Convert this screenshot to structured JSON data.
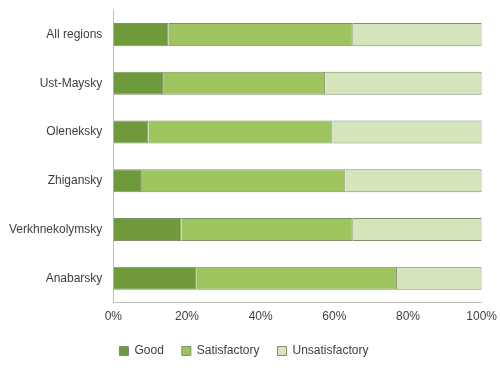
{
  "chart_data": {
    "type": "bar",
    "orientation": "horizontal",
    "stacked": true,
    "categories": [
      "All regions",
      "Ust-Maysky",
      "Oleneksky",
      "Zhigansky",
      "Verkhnekolymsky",
      "Anabarsky"
    ],
    "series": [
      {
        "name": "Good",
        "color": "#6e9a3c",
        "values": [
          15,
          13.5,
          9.5,
          7.5,
          18.5,
          22.5
        ]
      },
      {
        "name": "Satisfactory",
        "color": "#9dc45f",
        "values": [
          50,
          44,
          50,
          55.5,
          46.5,
          54.5
        ]
      },
      {
        "name": "Unsatisfactory",
        "color": "#d6e5bb",
        "values": [
          35,
          42.5,
          40.5,
          37,
          35,
          23
        ]
      }
    ],
    "xlim": [
      0,
      100
    ],
    "xticks": [
      {
        "value": 0,
        "label": "0%"
      },
      {
        "value": 20,
        "label": "20%"
      },
      {
        "value": 40,
        "label": "40%"
      },
      {
        "value": 60,
        "label": "60%"
      },
      {
        "value": 80,
        "label": "80%"
      },
      {
        "value": 100,
        "label": "100%"
      }
    ],
    "grid": false,
    "legend": "bottom"
  }
}
